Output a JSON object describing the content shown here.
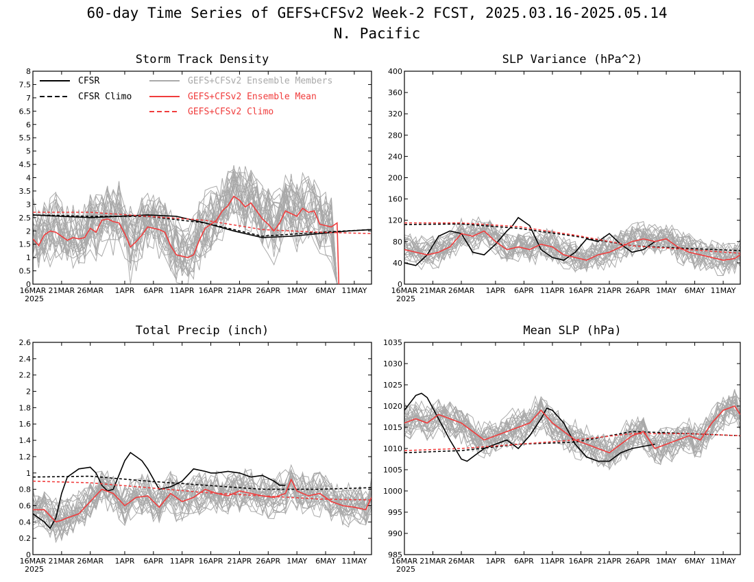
{
  "title": "60-day Time Series of GEFS+CFSv2 Week-2 FCST, 2025.03.16-2025.05.14",
  "subtitle": "N. Pacific",
  "colors": {
    "cfsr": "#000000",
    "members": "#a9a9a9",
    "ens_mean": "#f03c3c",
    "ens_climo": "#f03c3c"
  },
  "legend": {
    "cfsr": "CFSR",
    "cfsr_climo": "CFSR Climo",
    "members": "GEFS+CFSv2 Ensemble Members",
    "ens_mean": "GEFS+CFSv2 Ensemble Mean",
    "ens_climo": "GEFS+CFSv2 Climo"
  },
  "x_ticks": [
    {
      "day": 0,
      "label": "16MAR"
    },
    {
      "day": 5,
      "label": "21MAR"
    },
    {
      "day": 10,
      "label": "26MAR"
    },
    {
      "day": 16,
      "label": "1APR"
    },
    {
      "day": 21,
      "label": "6APR"
    },
    {
      "day": 26,
      "label": "11APR"
    },
    {
      "day": 31,
      "label": "16APR"
    },
    {
      "day": 36,
      "label": "21APR"
    },
    {
      "day": 41,
      "label": "26APR"
    },
    {
      "day": 46,
      "label": "1MAY"
    },
    {
      "day": 51,
      "label": "6MAY"
    },
    {
      "day": 56,
      "label": "11MAY"
    }
  ],
  "x_year_label": "2025",
  "chart_data": [
    {
      "type": "line",
      "title": "Storm Track Density",
      "x_range_days": [
        0,
        59
      ],
      "ylim": [
        0,
        8
      ],
      "y_ticks": [
        "0",
        "0.5",
        "1",
        "1.5",
        "2",
        "2.5",
        "3",
        "3.5",
        "4",
        "4.5",
        "5",
        "5.5",
        "6",
        "6.5",
        "7",
        "7.5",
        "8"
      ],
      "legend_position": "top-left",
      "series": [
        {
          "name": "CFSR",
          "x": [
            0,
            5,
            10,
            15,
            20,
            25,
            30,
            35,
            40,
            45,
            50,
            55,
            59
          ],
          "values": [
            2.6,
            2.55,
            2.5,
            2.55,
            2.6,
            2.55,
            2.3,
            2.0,
            1.75,
            1.8,
            1.9,
            2.0,
            2.05
          ]
        },
        {
          "name": "CFSR Climo",
          "x": [
            0,
            10,
            20,
            30,
            40,
            50,
            59
          ],
          "values": [
            2.6,
            2.55,
            2.55,
            2.3,
            1.8,
            1.95,
            2.05
          ]
        },
        {
          "name": "GEFS+CFSv2 Ensemble Mean",
          "x": [
            0,
            1,
            2,
            3,
            4,
            6,
            7,
            8,
            9,
            10,
            11,
            12,
            13,
            14,
            15,
            16,
            17,
            18,
            19,
            20,
            21,
            22,
            23,
            24,
            25,
            26,
            27,
            28,
            29,
            30,
            31,
            32,
            33,
            34,
            35,
            36,
            37,
            38,
            39,
            40,
            41,
            42,
            43,
            44,
            45,
            46,
            47,
            48,
            49,
            50,
            51,
            52,
            53,
            53.3
          ],
          "values": [
            1.7,
            1.45,
            1.85,
            2.0,
            1.95,
            1.65,
            1.75,
            1.7,
            1.75,
            2.1,
            1.95,
            2.4,
            2.45,
            2.35,
            2.3,
            1.9,
            1.4,
            1.6,
            1.85,
            2.15,
            2.1,
            2.05,
            1.95,
            1.45,
            1.1,
            1.05,
            1.0,
            1.1,
            1.65,
            2.1,
            2.25,
            2.4,
            2.75,
            2.95,
            3.3,
            3.15,
            2.9,
            3.05,
            2.75,
            2.45,
            2.25,
            2.0,
            2.3,
            2.75,
            2.65,
            2.55,
            2.85,
            2.7,
            2.75,
            2.25,
            2.2,
            2.15,
            2.3,
            0.0
          ]
        },
        {
          "name": "GEFS+CFSv2 Climo",
          "x": [
            0,
            10,
            20,
            30,
            40,
            50,
            59
          ],
          "values": [
            2.7,
            2.7,
            2.55,
            2.4,
            2.05,
            1.95,
            1.9
          ]
        }
      ]
    },
    {
      "type": "line",
      "title": "SLP Variance (hPa^2)",
      "x_range_days": [
        0,
        59
      ],
      "ylim": [
        0,
        400
      ],
      "y_ticks": [
        "0",
        "40",
        "80",
        "120",
        "160",
        "200",
        "240",
        "280",
        "320",
        "360",
        "400"
      ],
      "series": [
        {
          "name": "CFSR",
          "x": [
            0,
            2,
            4,
            6,
            8,
            10,
            12,
            14,
            16,
            18,
            19,
            20,
            22,
            24,
            26,
            28,
            30,
            32,
            34,
            36,
            38,
            40,
            42,
            44
          ],
          "values": [
            40,
            35,
            55,
            90,
            100,
            95,
            60,
            55,
            75,
            100,
            110,
            125,
            110,
            65,
            50,
            45,
            60,
            85,
            80,
            95,
            75,
            60,
            65,
            80
          ]
        },
        {
          "name": "CFSR Climo",
          "x": [
            0,
            10,
            20,
            30,
            40,
            50,
            59
          ],
          "values": [
            112,
            113,
            105,
            90,
            72,
            67,
            63
          ]
        },
        {
          "name": "GEFS+CFSv2 Ensemble Mean",
          "x": [
            0,
            2,
            4,
            6,
            8,
            10,
            12,
            14,
            16,
            18,
            20,
            22,
            24,
            26,
            28,
            30,
            32,
            34,
            36,
            38,
            40,
            42,
            44,
            46,
            48,
            50,
            52,
            54,
            56,
            58,
            59
          ],
          "values": [
            65,
            60,
            55,
            60,
            70,
            95,
            90,
            100,
            80,
            65,
            70,
            65,
            75,
            70,
            55,
            50,
            45,
            55,
            60,
            70,
            80,
            85,
            80,
            85,
            70,
            60,
            55,
            50,
            45,
            48,
            55
          ]
        },
        {
          "name": "GEFS+CFSv2 Climo",
          "x": [
            0,
            10,
            20,
            30,
            40,
            50,
            59
          ],
          "values": [
            115,
            115,
            108,
            92,
            72,
            65,
            58
          ]
        }
      ]
    },
    {
      "type": "line",
      "title": "Total Precip (inch)",
      "x_range_days": [
        0,
        59
      ],
      "ylim": [
        0,
        2.6
      ],
      "y_ticks": [
        "0",
        "0.2",
        "0.4",
        "0.6",
        "0.8",
        "1",
        "1.2",
        "1.4",
        "1.6",
        "1.8",
        "2",
        "2.2",
        "2.4",
        "2.6"
      ],
      "series": [
        {
          "name": "CFSR",
          "x": [
            0,
            2,
            3,
            4,
            5,
            6,
            8,
            10,
            11,
            12,
            13,
            14,
            16,
            17,
            18,
            19,
            20,
            22,
            24,
            26,
            28,
            30,
            31,
            32,
            34,
            36,
            38,
            40,
            42,
            43,
            44
          ],
          "values": [
            0.5,
            0.4,
            0.32,
            0.45,
            0.75,
            0.95,
            1.05,
            1.07,
            1.0,
            0.85,
            0.78,
            0.8,
            1.15,
            1.25,
            1.2,
            1.15,
            1.05,
            0.8,
            0.83,
            0.9,
            1.05,
            1.02,
            1.0,
            1.0,
            1.02,
            1.0,
            0.95,
            0.97,
            0.9,
            0.85,
            0.85
          ]
        },
        {
          "name": "CFSR Climo",
          "x": [
            0,
            10,
            20,
            30,
            40,
            50,
            59
          ],
          "values": [
            0.95,
            0.96,
            0.9,
            0.85,
            0.8,
            0.8,
            0.82
          ]
        },
        {
          "name": "GEFS+CFSv2 Ensemble Mean",
          "x": [
            0,
            2,
            4,
            5,
            6,
            8,
            10,
            12,
            14,
            16,
            18,
            20,
            22,
            24,
            26,
            28,
            30,
            32,
            34,
            36,
            38,
            40,
            42,
            44,
            45,
            46,
            48,
            50,
            52,
            54,
            56,
            58,
            59
          ],
          "values": [
            0.55,
            0.55,
            0.4,
            0.42,
            0.45,
            0.5,
            0.65,
            0.8,
            0.75,
            0.6,
            0.7,
            0.72,
            0.58,
            0.75,
            0.65,
            0.7,
            0.8,
            0.75,
            0.72,
            0.78,
            0.75,
            0.72,
            0.7,
            0.75,
            0.92,
            0.78,
            0.72,
            0.75,
            0.65,
            0.6,
            0.58,
            0.55,
            0.7
          ]
        },
        {
          "name": "GEFS+CFSv2 Climo",
          "x": [
            0,
            10,
            20,
            30,
            40,
            50,
            59
          ],
          "values": [
            0.9,
            0.88,
            0.82,
            0.76,
            0.72,
            0.68,
            0.67
          ]
        }
      ]
    },
    {
      "type": "line",
      "title": "Mean SLP (hPa)",
      "x_range_days": [
        0,
        59
      ],
      "ylim": [
        985,
        1035
      ],
      "y_ticks": [
        "985",
        "990",
        "995",
        "1000",
        "1005",
        "1010",
        "1015",
        "1020",
        "1025",
        "1030",
        "1035"
      ],
      "series": [
        {
          "name": "CFSR",
          "x": [
            0,
            2,
            3,
            4,
            6,
            8,
            10,
            11,
            12,
            14,
            16,
            18,
            20,
            22,
            24,
            25,
            26,
            28,
            30,
            32,
            34,
            36,
            38,
            40,
            42,
            44
          ],
          "values": [
            1019,
            1022.5,
            1023,
            1022,
            1017,
            1012,
            1007.5,
            1007,
            1008,
            1010,
            1011,
            1012,
            1010,
            1013,
            1017,
            1019.5,
            1019,
            1016,
            1011,
            1008,
            1007,
            1007,
            1009,
            1010,
            1010.5,
            1011
          ]
        },
        {
          "name": "CFSR Climo",
          "x": [
            0,
            10,
            20,
            30,
            40,
            50,
            59
          ],
          "values": [
            1009,
            1009.5,
            1011,
            1011.5,
            1014,
            1013.5,
            1013
          ]
        },
        {
          "name": "GEFS+CFSv2 Ensemble Mean",
          "x": [
            0,
            2,
            4,
            6,
            8,
            10,
            12,
            14,
            16,
            18,
            20,
            22,
            24,
            26,
            28,
            30,
            32,
            34,
            36,
            38,
            40,
            42,
            44,
            46,
            48,
            50,
            52,
            54,
            56,
            58,
            59
          ],
          "values": [
            1016,
            1017,
            1016,
            1018,
            1017,
            1016,
            1014,
            1012,
            1013,
            1014,
            1015,
            1016,
            1019,
            1016,
            1014,
            1012,
            1011,
            1010,
            1009,
            1011,
            1013,
            1014,
            1010,
            1011,
            1012,
            1013,
            1012,
            1016,
            1019,
            1020,
            1018
          ]
        },
        {
          "name": "GEFS+CFSv2 Climo",
          "x": [
            0,
            10,
            20,
            30,
            40,
            50,
            59
          ],
          "values": [
            1009.5,
            1010,
            1011,
            1012,
            1013.5,
            1013.5,
            1013
          ]
        }
      ]
    }
  ]
}
